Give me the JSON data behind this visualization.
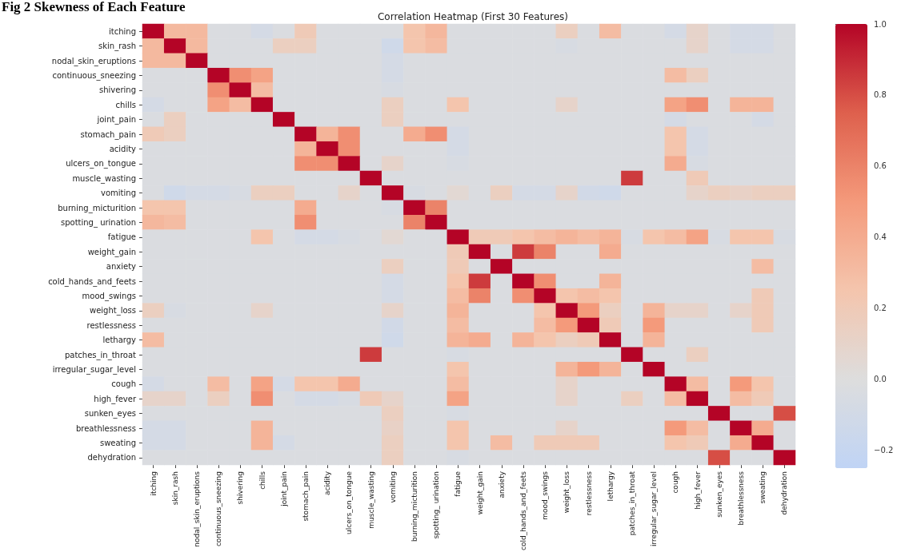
{
  "chart_data": {
    "type": "heatmap",
    "title": "Correlation Heatmap (First 30 Features)",
    "annotations": [
      "Fig 2 Skewness of Each Feature"
    ],
    "categories": [
      "itching",
      "skin_rash",
      "nodal_skin_eruptions",
      "continuous_sneezing",
      "shivering",
      "chills",
      "joint_pain",
      "stomach_pain",
      "acidity",
      "ulcers_on_tongue",
      "muscle_wasting",
      "vomiting",
      "burning_micturition",
      "spotting_ urination",
      "fatigue",
      "weight_gain",
      "anxiety",
      "cold_hands_and_feets",
      "mood_swings",
      "weight_loss",
      "restlessness",
      "lethargy",
      "patches_in_throat",
      "irregular_sugar_level",
      "cough",
      "high_fever",
      "sunken_eyes",
      "breathlessness",
      "sweating",
      "dehydration"
    ],
    "y_categories": [
      "itching",
      "skin_rash",
      "nodal_skin_eruptions",
      "continuous_sneezing",
      "shivering",
      "chills",
      "joint_pain",
      "stomach_pain",
      "acidity",
      "ulcers_on_tongue",
      "muscle_wasting",
      "vomiting",
      "burning_micturition",
      "spotting_ urination",
      "fatigue",
      "weight_gain",
      "anxiety",
      "cold_hands_and_feets",
      "mood_swings",
      "weight_loss",
      "restlessness",
      "lethargy",
      "patches_in_throat",
      "irregular_sugar_level",
      "cough",
      "high_fever",
      "sunken_eyes",
      "breathlessness",
      "sweating",
      "dehydration"
    ],
    "cells": [
      [
        1,
        0.32,
        0.32,
        -0.03,
        -0.03,
        -0.08,
        -0.03,
        0.2,
        -0.03,
        -0.03,
        -0.03,
        -0.03,
        0.25,
        0.33,
        -0.03,
        -0.03,
        -0.03,
        -0.03,
        -0.03,
        0.15,
        -0.03,
        0.3,
        -0.03,
        -0.03,
        -0.08,
        0.1,
        -0.03,
        -0.08,
        -0.08,
        -0.03
      ],
      [
        0.32,
        1,
        0.32,
        -0.03,
        -0.03,
        -0.03,
        0.15,
        0.15,
        -0.03,
        -0.03,
        -0.03,
        -0.12,
        0.25,
        0.3,
        -0.03,
        -0.03,
        -0.03,
        -0.03,
        -0.03,
        -0.05,
        -0.03,
        -0.03,
        -0.03,
        -0.03,
        -0.03,
        0.1,
        -0.03,
        -0.08,
        -0.08,
        -0.03
      ],
      [
        0.32,
        0.32,
        1,
        -0.03,
        -0.03,
        -0.03,
        -0.03,
        -0.03,
        -0.03,
        -0.03,
        -0.03,
        -0.08,
        -0.03,
        -0.03,
        -0.03,
        -0.03,
        -0.03,
        -0.03,
        -0.03,
        -0.03,
        -0.03,
        -0.03,
        -0.03,
        -0.03,
        -0.03,
        -0.03,
        -0.03,
        -0.03,
        -0.03,
        -0.03
      ],
      [
        -0.03,
        -0.03,
        -0.03,
        1,
        0.55,
        0.45,
        -0.03,
        -0.03,
        -0.03,
        -0.03,
        -0.03,
        -0.08,
        -0.03,
        -0.03,
        -0.03,
        -0.03,
        -0.03,
        -0.03,
        -0.03,
        -0.03,
        -0.03,
        -0.03,
        -0.03,
        -0.03,
        0.3,
        0.15,
        -0.03,
        -0.03,
        -0.03,
        -0.03
      ],
      [
        -0.03,
        -0.03,
        -0.03,
        0.55,
        1,
        0.3,
        -0.03,
        -0.03,
        -0.03,
        -0.03,
        -0.03,
        -0.05,
        -0.03,
        -0.03,
        -0.03,
        -0.03,
        -0.03,
        -0.03,
        -0.03,
        -0.03,
        -0.03,
        -0.03,
        -0.03,
        -0.03,
        -0.03,
        -0.03,
        -0.03,
        -0.03,
        -0.03,
        -0.03
      ],
      [
        -0.08,
        -0.03,
        -0.03,
        0.45,
        0.3,
        1,
        -0.03,
        -0.03,
        -0.03,
        -0.03,
        -0.03,
        0.15,
        -0.03,
        -0.03,
        0.25,
        -0.03,
        -0.03,
        -0.03,
        -0.03,
        0.1,
        -0.03,
        -0.03,
        -0.03,
        -0.03,
        0.45,
        0.55,
        -0.03,
        0.35,
        0.35,
        -0.03
      ],
      [
        -0.03,
        0.15,
        -0.03,
        -0.03,
        -0.03,
        -0.03,
        1,
        -0.03,
        -0.03,
        -0.03,
        -0.03,
        0.15,
        -0.03,
        -0.03,
        -0.03,
        -0.03,
        -0.03,
        -0.03,
        -0.03,
        -0.03,
        -0.03,
        -0.03,
        -0.03,
        -0.03,
        -0.08,
        -0.03,
        -0.03,
        -0.03,
        -0.08,
        -0.03
      ],
      [
        0.2,
        0.15,
        -0.03,
        -0.03,
        -0.03,
        -0.03,
        -0.03,
        1,
        0.35,
        0.55,
        -0.03,
        -0.03,
        0.4,
        0.55,
        -0.08,
        -0.03,
        -0.03,
        -0.03,
        -0.03,
        -0.03,
        -0.03,
        -0.03,
        -0.03,
        -0.03,
        0.25,
        -0.08,
        -0.03,
        -0.03,
        -0.03,
        -0.03
      ],
      [
        -0.03,
        -0.03,
        -0.03,
        -0.03,
        -0.03,
        -0.03,
        -0.03,
        0.35,
        1,
        0.55,
        -0.03,
        -0.03,
        -0.03,
        -0.03,
        -0.08,
        -0.03,
        -0.03,
        -0.03,
        -0.03,
        -0.03,
        -0.03,
        -0.03,
        -0.03,
        -0.03,
        0.25,
        -0.08,
        -0.03,
        -0.03,
        -0.03,
        -0.03
      ],
      [
        -0.03,
        -0.03,
        -0.03,
        -0.03,
        -0.03,
        -0.03,
        -0.03,
        0.55,
        0.55,
        1,
        -0.03,
        0.1,
        -0.03,
        -0.03,
        -0.05,
        -0.03,
        -0.03,
        -0.03,
        -0.03,
        -0.03,
        -0.03,
        -0.03,
        -0.03,
        -0.03,
        0.4,
        -0.05,
        -0.03,
        -0.03,
        -0.03,
        -0.03
      ],
      [
        -0.03,
        -0.03,
        -0.03,
        -0.03,
        -0.03,
        -0.03,
        -0.03,
        -0.03,
        -0.03,
        -0.03,
        1,
        -0.03,
        -0.03,
        -0.03,
        -0.03,
        -0.03,
        -0.03,
        -0.03,
        -0.03,
        -0.03,
        -0.03,
        -0.03,
        0.85,
        -0.03,
        -0.03,
        0.2,
        -0.03,
        -0.03,
        -0.03,
        -0.03
      ],
      [
        -0.03,
        -0.12,
        -0.08,
        -0.08,
        -0.05,
        0.15,
        0.15,
        -0.03,
        -0.03,
        0.1,
        -0.03,
        1,
        -0.05,
        -0.03,
        0.05,
        -0.03,
        0.15,
        -0.08,
        -0.08,
        0.1,
        -0.1,
        -0.12,
        -0.03,
        -0.03,
        -0.03,
        0.1,
        0.15,
        0.12,
        0.15,
        0.15
      ],
      [
        0.25,
        0.25,
        -0.03,
        -0.03,
        -0.03,
        -0.03,
        -0.03,
        0.4,
        -0.03,
        -0.03,
        -0.03,
        -0.05,
        1,
        0.6,
        -0.03,
        -0.03,
        -0.03,
        -0.03,
        -0.03,
        -0.03,
        -0.03,
        -0.03,
        -0.03,
        -0.03,
        -0.03,
        -0.03,
        -0.03,
        -0.03,
        -0.03,
        -0.03
      ],
      [
        0.33,
        0.3,
        -0.03,
        -0.03,
        -0.03,
        -0.03,
        -0.03,
        0.55,
        -0.03,
        -0.03,
        -0.03,
        -0.03,
        0.6,
        1,
        -0.03,
        -0.03,
        -0.03,
        -0.03,
        -0.03,
        -0.03,
        -0.03,
        -0.03,
        -0.03,
        -0.03,
        -0.03,
        -0.03,
        -0.03,
        -0.03,
        -0.03,
        -0.03
      ],
      [
        -0.03,
        -0.03,
        -0.03,
        -0.03,
        -0.03,
        0.25,
        -0.03,
        -0.08,
        -0.08,
        -0.05,
        -0.03,
        0.05,
        -0.03,
        -0.03,
        1,
        0.2,
        0.2,
        0.25,
        0.3,
        0.35,
        0.3,
        0.35,
        -0.05,
        0.25,
        0.3,
        0.45,
        -0.05,
        0.25,
        0.25,
        -0.05
      ],
      [
        -0.03,
        -0.03,
        -0.03,
        -0.03,
        -0.03,
        -0.03,
        -0.03,
        -0.03,
        -0.03,
        -0.03,
        -0.03,
        -0.03,
        -0.03,
        -0.03,
        0.2,
        1,
        -0.03,
        0.85,
        0.6,
        -0.03,
        -0.03,
        0.4,
        -0.03,
        -0.03,
        -0.03,
        -0.03,
        -0.03,
        -0.03,
        -0.03,
        -0.03
      ],
      [
        -0.03,
        -0.03,
        -0.03,
        -0.03,
        -0.03,
        -0.03,
        -0.03,
        -0.03,
        -0.03,
        -0.03,
        -0.03,
        0.15,
        -0.03,
        -0.03,
        0.2,
        -0.03,
        1,
        -0.03,
        -0.03,
        -0.03,
        -0.03,
        -0.03,
        -0.03,
        -0.03,
        -0.03,
        -0.03,
        -0.03,
        -0.03,
        0.3,
        -0.03
      ],
      [
        -0.03,
        -0.03,
        -0.03,
        -0.03,
        -0.03,
        -0.03,
        -0.03,
        -0.03,
        -0.03,
        -0.03,
        -0.03,
        -0.08,
        -0.03,
        -0.03,
        0.25,
        0.85,
        -0.03,
        1,
        0.55,
        -0.03,
        -0.03,
        0.35,
        -0.03,
        -0.03,
        -0.03,
        -0.03,
        -0.03,
        -0.03,
        -0.03,
        -0.03
      ],
      [
        -0.03,
        -0.03,
        -0.03,
        -0.03,
        -0.03,
        -0.03,
        -0.03,
        -0.03,
        -0.03,
        -0.03,
        -0.03,
        -0.08,
        -0.03,
        -0.03,
        0.3,
        0.6,
        -0.03,
        0.55,
        1,
        0.25,
        0.3,
        0.25,
        -0.03,
        -0.03,
        -0.03,
        -0.03,
        -0.03,
        -0.03,
        0.2,
        -0.03
      ],
      [
        0.15,
        -0.05,
        -0.03,
        -0.03,
        -0.03,
        0.1,
        -0.03,
        -0.03,
        -0.03,
        -0.03,
        -0.03,
        0.1,
        -0.03,
        -0.03,
        0.35,
        -0.03,
        -0.03,
        -0.03,
        0.25,
        1,
        0.5,
        0.15,
        -0.03,
        0.35,
        0.1,
        0.1,
        -0.03,
        0.1,
        0.2,
        -0.03
      ],
      [
        -0.03,
        -0.03,
        -0.03,
        -0.03,
        -0.03,
        -0.03,
        -0.03,
        -0.03,
        -0.03,
        -0.03,
        -0.03,
        -0.1,
        -0.03,
        -0.03,
        0.3,
        -0.03,
        -0.03,
        -0.03,
        0.3,
        0.5,
        1,
        0.2,
        -0.03,
        0.5,
        -0.03,
        -0.03,
        -0.03,
        -0.03,
        0.2,
        -0.03
      ],
      [
        0.3,
        -0.03,
        -0.03,
        -0.03,
        -0.03,
        -0.03,
        -0.03,
        -0.03,
        -0.03,
        -0.03,
        -0.03,
        -0.12,
        -0.03,
        -0.03,
        0.35,
        0.4,
        -0.03,
        0.35,
        0.25,
        0.15,
        0.2,
        1,
        -0.03,
        0.35,
        -0.03,
        -0.03,
        -0.03,
        -0.03,
        -0.03,
        -0.03
      ],
      [
        -0.03,
        -0.03,
        -0.03,
        -0.03,
        -0.03,
        -0.03,
        -0.03,
        -0.03,
        -0.03,
        -0.03,
        0.85,
        -0.03,
        -0.03,
        -0.03,
        -0.05,
        -0.03,
        -0.03,
        -0.03,
        -0.03,
        -0.03,
        -0.03,
        -0.03,
        1,
        -0.03,
        -0.03,
        0.15,
        -0.03,
        -0.03,
        -0.03,
        -0.03
      ],
      [
        -0.03,
        -0.03,
        -0.03,
        -0.03,
        -0.03,
        -0.03,
        -0.03,
        -0.03,
        -0.03,
        -0.03,
        -0.03,
        -0.03,
        -0.03,
        -0.03,
        0.25,
        -0.03,
        -0.03,
        -0.03,
        -0.03,
        0.35,
        0.5,
        0.35,
        -0.03,
        1,
        -0.03,
        -0.03,
        -0.03,
        -0.03,
        -0.03,
        -0.03
      ],
      [
        -0.08,
        -0.03,
        -0.03,
        0.3,
        -0.03,
        0.45,
        -0.08,
        0.25,
        0.25,
        0.4,
        -0.03,
        -0.03,
        -0.03,
        -0.03,
        0.3,
        -0.03,
        -0.03,
        -0.03,
        -0.03,
        0.1,
        -0.03,
        -0.03,
        -0.03,
        -0.03,
        1,
        0.3,
        -0.03,
        0.5,
        0.25,
        -0.03
      ],
      [
        0.1,
        0.1,
        -0.03,
        0.15,
        -0.03,
        0.55,
        -0.03,
        -0.08,
        -0.08,
        -0.05,
        0.2,
        0.1,
        -0.03,
        -0.03,
        0.45,
        -0.03,
        -0.03,
        -0.03,
        -0.03,
        0.1,
        -0.03,
        -0.03,
        0.15,
        -0.03,
        0.3,
        1,
        -0.03,
        0.3,
        0.2,
        -0.03
      ],
      [
        -0.03,
        -0.03,
        -0.03,
        -0.03,
        -0.03,
        -0.03,
        -0.03,
        -0.03,
        -0.03,
        -0.03,
        -0.03,
        0.15,
        -0.03,
        -0.03,
        -0.05,
        -0.03,
        -0.03,
        -0.03,
        -0.03,
        -0.03,
        -0.03,
        -0.03,
        -0.03,
        -0.03,
        -0.03,
        -0.03,
        1,
        -0.03,
        -0.03,
        0.8
      ],
      [
        -0.08,
        -0.08,
        -0.03,
        -0.03,
        -0.03,
        0.35,
        -0.03,
        -0.03,
        -0.03,
        -0.03,
        -0.03,
        0.12,
        -0.03,
        -0.03,
        0.25,
        -0.03,
        -0.03,
        -0.03,
        -0.03,
        0.1,
        -0.03,
        -0.03,
        -0.03,
        -0.03,
        0.5,
        0.3,
        -0.03,
        1,
        0.4,
        -0.03
      ],
      [
        -0.08,
        -0.08,
        -0.03,
        -0.03,
        -0.03,
        0.35,
        -0.08,
        -0.03,
        -0.03,
        -0.03,
        -0.03,
        0.15,
        -0.03,
        -0.03,
        0.25,
        -0.03,
        0.3,
        -0.03,
        0.2,
        0.2,
        0.2,
        -0.03,
        -0.03,
        -0.03,
        0.25,
        0.2,
        -0.03,
        0.4,
        1,
        -0.03
      ],
      [
        -0.03,
        -0.03,
        -0.03,
        -0.03,
        -0.03,
        -0.03,
        -0.03,
        -0.03,
        -0.03,
        -0.03,
        -0.03,
        0.15,
        -0.03,
        -0.03,
        -0.05,
        -0.03,
        -0.03,
        -0.03,
        -0.03,
        -0.03,
        -0.03,
        -0.03,
        -0.03,
        -0.03,
        -0.03,
        -0.03,
        0.8,
        -0.03,
        -0.03,
        1
      ]
    ],
    "clim": [
      -0.25,
      1
    ],
    "cticks": [
      {
        "value": 1,
        "label": "1.0"
      },
      {
        "value": 0.8,
        "label": "0.8"
      },
      {
        "value": 0.6,
        "label": "0.6"
      },
      {
        "value": 0.4,
        "label": "0.4"
      },
      {
        "value": 0.2,
        "label": "0.2"
      },
      {
        "value": 0,
        "label": "0.0"
      },
      {
        "value": -0.2,
        "label": "−0.2"
      }
    ]
  }
}
